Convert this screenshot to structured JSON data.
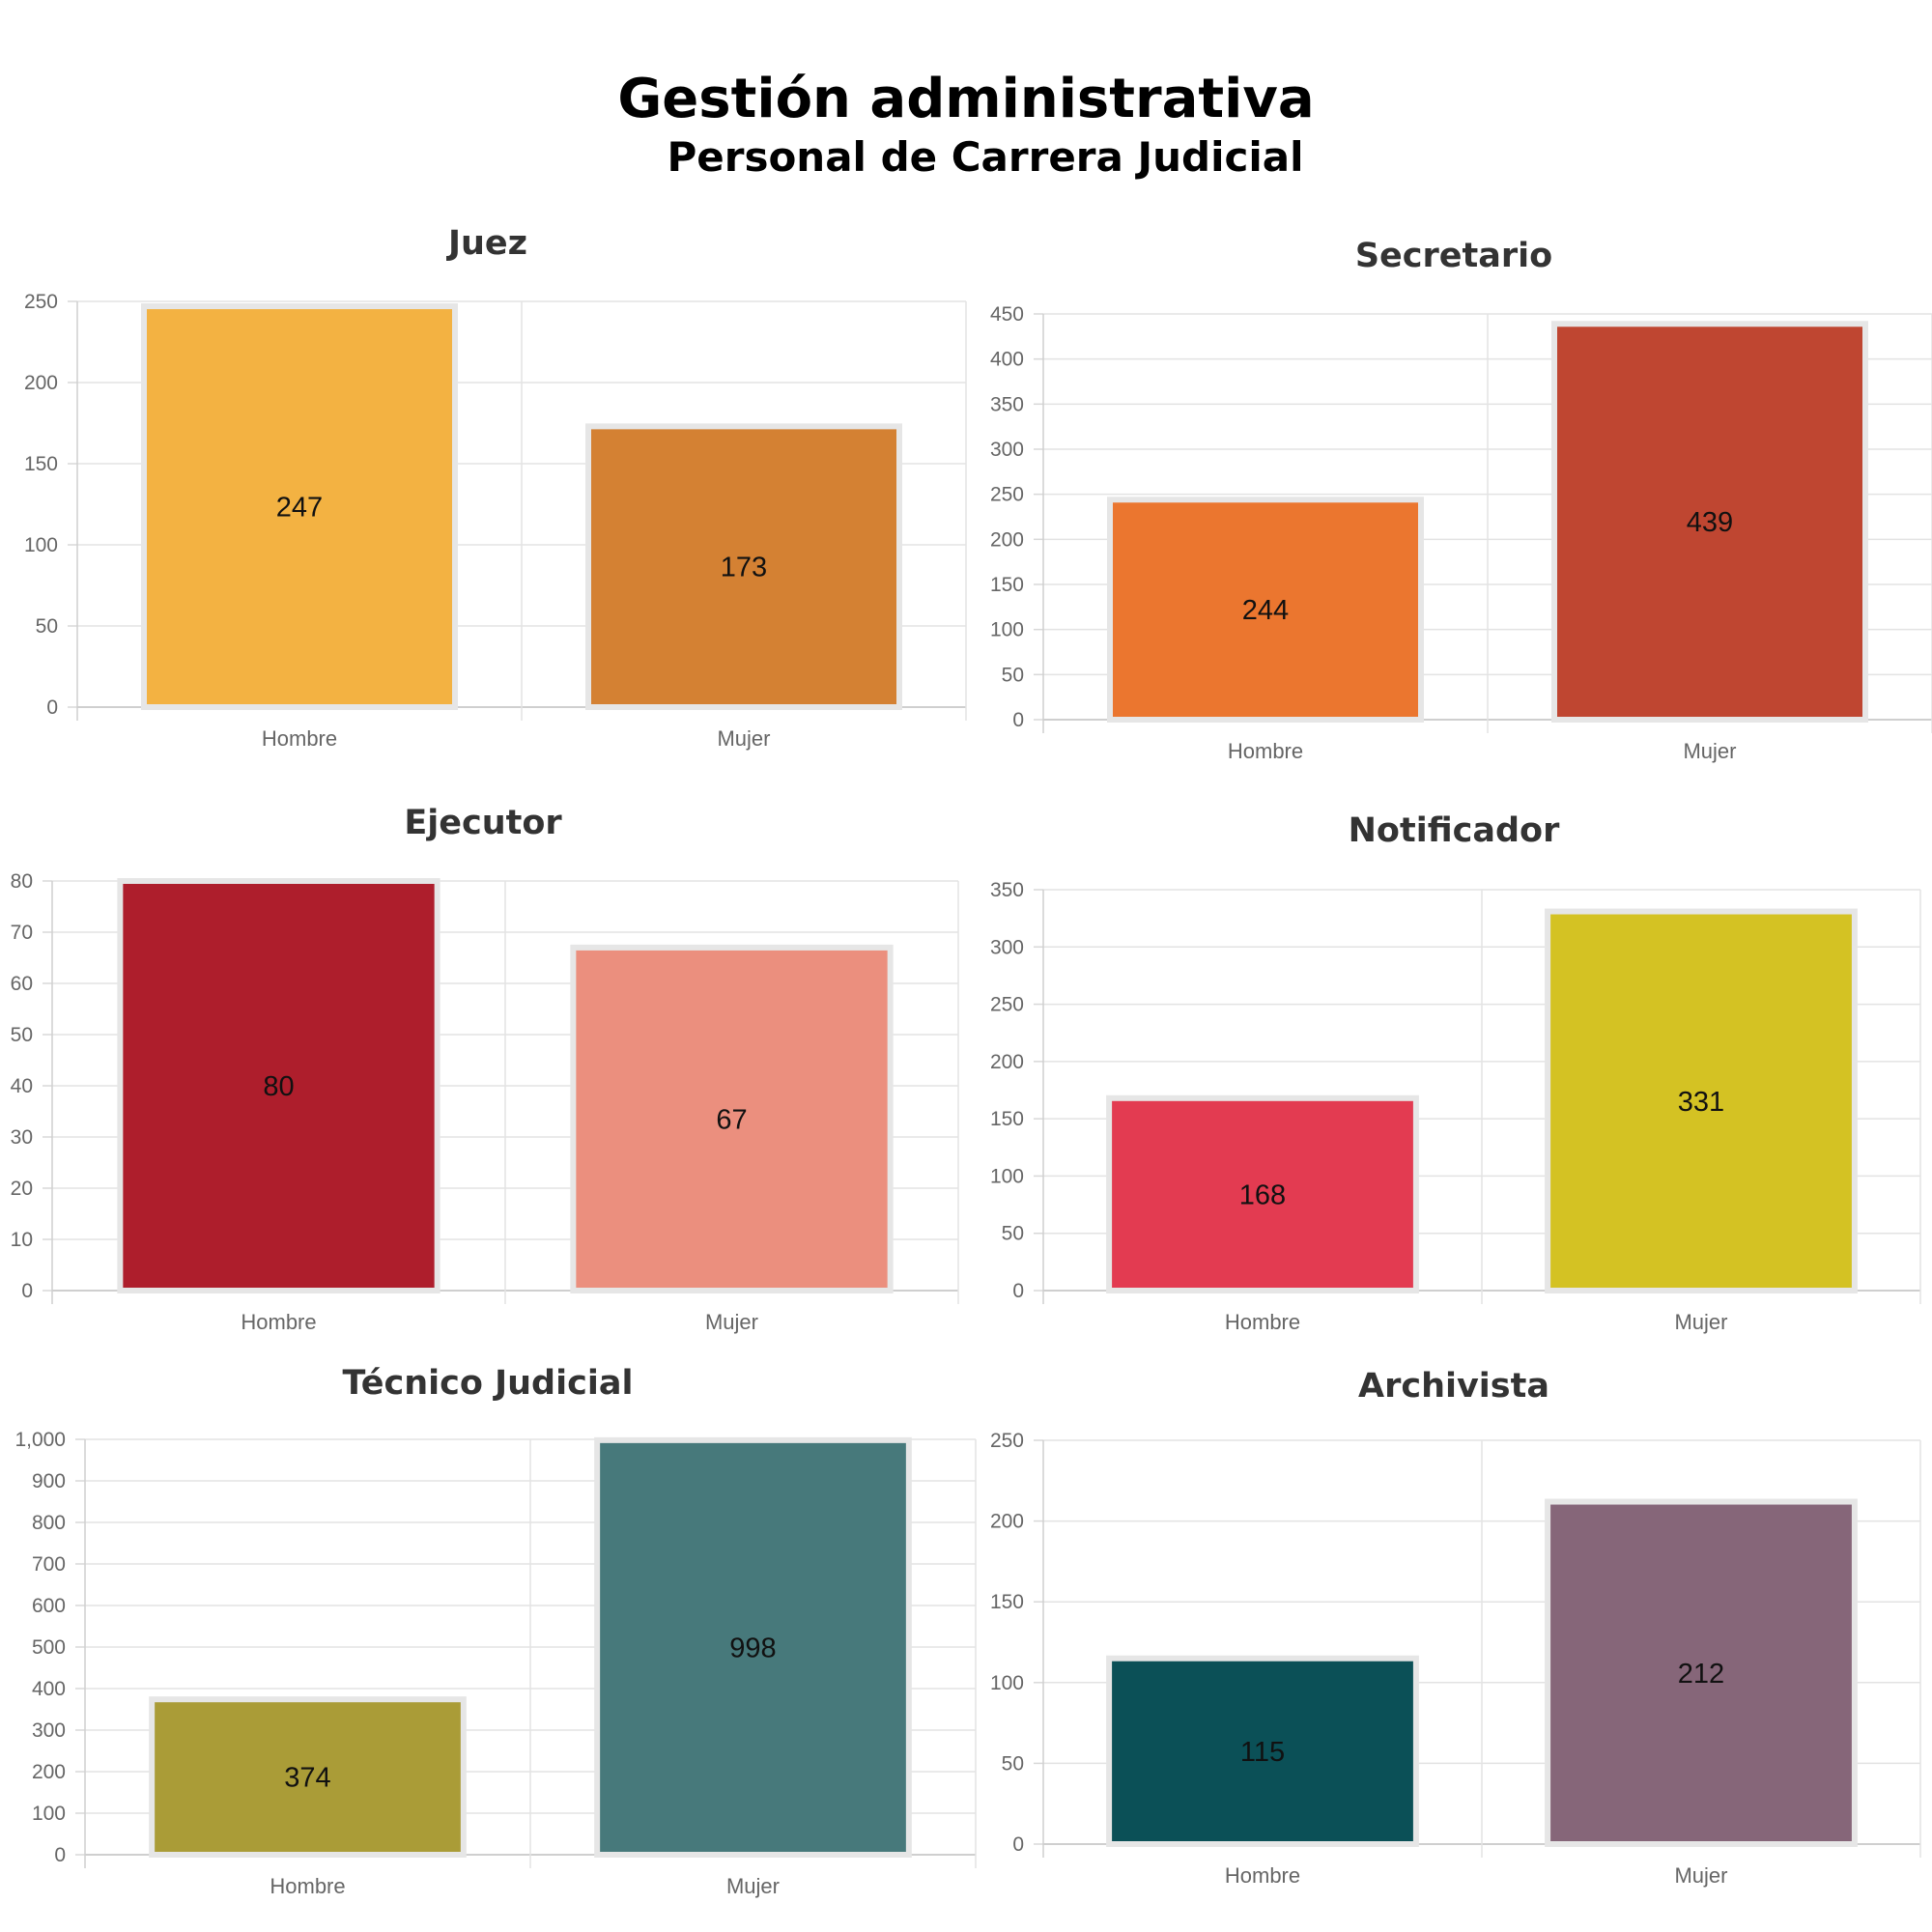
{
  "header": {
    "title": "Gestión administrativa",
    "subtitle": "Personal de Carrera Judicial"
  },
  "chart_data": [
    {
      "type": "bar",
      "title": "Juez",
      "categories": [
        "Hombre",
        "Mujer"
      ],
      "values": [
        247,
        173
      ],
      "colors": [
        "#F3B242",
        "#D48133"
      ],
      "ylim": [
        0,
        250
      ],
      "yticks": [
        0,
        50,
        100,
        150,
        200,
        250
      ],
      "grid": true
    },
    {
      "type": "bar",
      "title": "Secretario",
      "categories": [
        "Hombre",
        "Mujer"
      ],
      "values": [
        244,
        439
      ],
      "colors": [
        "#EB762F",
        "#BF4631"
      ],
      "ylim": [
        0,
        450
      ],
      "yticks": [
        0,
        50,
        100,
        150,
        200,
        250,
        300,
        350,
        400,
        450
      ],
      "grid": true
    },
    {
      "type": "bar",
      "title": "Ejecutor",
      "categories": [
        "Hombre",
        "Mujer"
      ],
      "values": [
        80,
        67
      ],
      "colors": [
        "#AE1E2C",
        "#EB8F7E"
      ],
      "ylim": [
        0,
        80
      ],
      "yticks": [
        0,
        10,
        20,
        30,
        40,
        50,
        60,
        70,
        80
      ],
      "grid": true
    },
    {
      "type": "bar",
      "title": "Notificador",
      "categories": [
        "Hombre",
        "Mujer"
      ],
      "values": [
        168,
        331
      ],
      "colors": [
        "#E33B51",
        "#D4C223"
      ],
      "ylim": [
        0,
        350
      ],
      "yticks": [
        0,
        50,
        100,
        150,
        200,
        250,
        300,
        350
      ],
      "grid": true
    },
    {
      "type": "bar",
      "title": "Técnico Judicial",
      "categories": [
        "Hombre",
        "Mujer"
      ],
      "values": [
        374,
        998
      ],
      "colors": [
        "#AA9C37",
        "#47797B"
      ],
      "ylim": [
        0,
        1000
      ],
      "yticks": [
        0,
        100,
        200,
        300,
        400,
        500,
        600,
        700,
        800,
        900,
        1000
      ],
      "ytick_labels": [
        "0",
        "100",
        "200",
        "300",
        "400",
        "500",
        "600",
        "700",
        "800",
        "900",
        "1,000"
      ],
      "grid": true
    },
    {
      "type": "bar",
      "title": "Archivista",
      "categories": [
        "Hombre",
        "Mujer"
      ],
      "values": [
        115,
        212
      ],
      "colors": [
        "#0B5057",
        "#866679"
      ],
      "ylim": [
        0,
        250
      ],
      "yticks": [
        0,
        50,
        100,
        150,
        200,
        250
      ],
      "grid": true
    }
  ]
}
